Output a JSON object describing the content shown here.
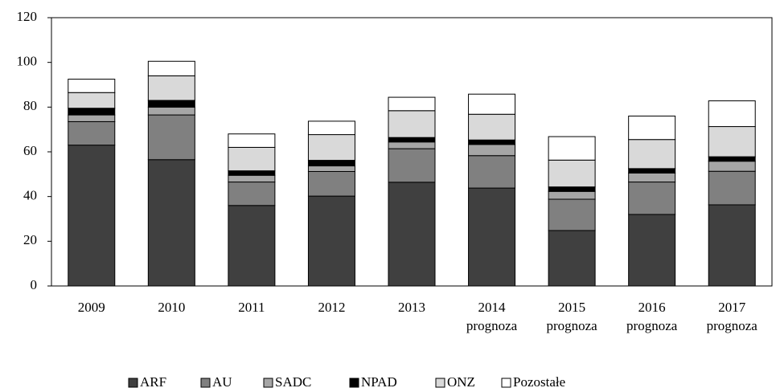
{
  "chart_data": {
    "type": "stacked_bar",
    "categories": [
      [
        "2009"
      ],
      [
        "2010"
      ],
      [
        "2011"
      ],
      [
        "2012"
      ],
      [
        "2013"
      ],
      [
        "2014",
        "prognoza"
      ],
      [
        "2015",
        "prognoza"
      ],
      [
        "2016",
        "prognoza"
      ],
      [
        "2017",
        "prognoza"
      ]
    ],
    "series": [
      {
        "name": "ARF",
        "color": "#404040",
        "values": [
          63,
          56.5,
          36,
          40.2,
          46.4,
          43.8,
          24.8,
          32,
          36.3
        ]
      },
      {
        "name": "AU",
        "color": "#808080",
        "values": [
          10.5,
          20,
          10.5,
          11,
          15,
          14.5,
          14,
          14.5,
          15
        ]
      },
      {
        "name": "SADC",
        "color": "#a6a6a6",
        "values": [
          3,
          3.5,
          3,
          2.5,
          3,
          5,
          3.5,
          4,
          4.5
        ]
      },
      {
        "name": "NPAD",
        "color": "#000000",
        "values": [
          3,
          3,
          2,
          2.5,
          2,
          2,
          2,
          2,
          2
        ]
      },
      {
        "name": "ONZ",
        "color": "#d9d9d9",
        "values": [
          7,
          11,
          10.5,
          11.5,
          12,
          11.5,
          12,
          13,
          13.5
        ]
      },
      {
        "name": "Pozostałe",
        "color": "#ffffff",
        "values": [
          6,
          6.5,
          6,
          6,
          6,
          9,
          10.5,
          10.5,
          11.5
        ]
      }
    ],
    "ylim": [
      0,
      120
    ],
    "yticks": [
      0,
      20,
      40,
      60,
      80,
      100,
      120
    ],
    "grid": false,
    "legend": "bottom"
  }
}
